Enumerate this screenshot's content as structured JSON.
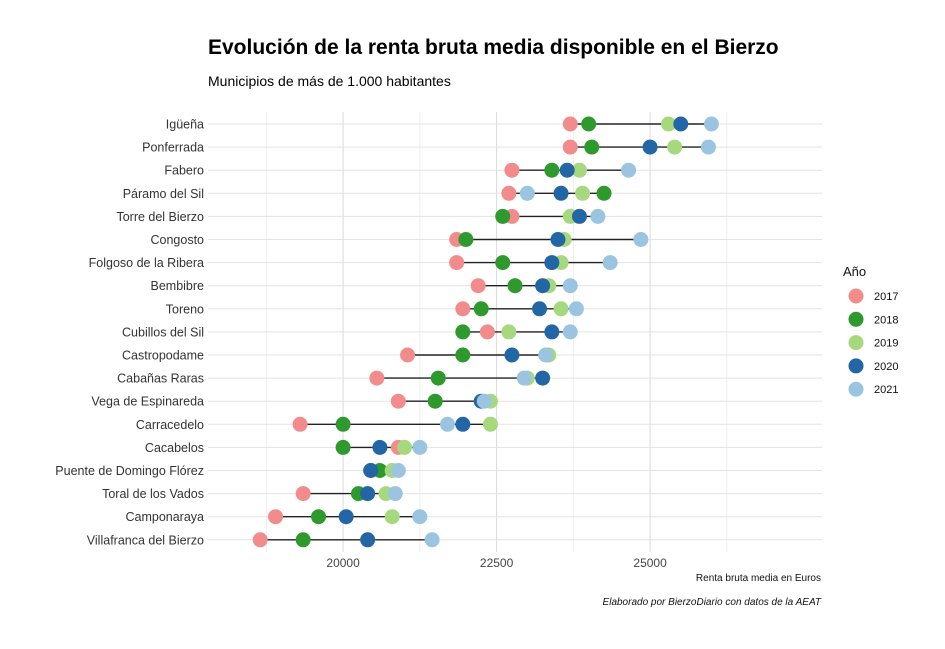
{
  "title": "Evolución de la renta bruta media disponible en el Bierzo",
  "subtitle": "Municipios de más de 1.000 habitantes",
  "caption": "Elaborado por BierzoDiario con datos de la AEAT",
  "chart_data": {
    "type": "scatter",
    "style": "dumbbell",
    "title": "Evolución de la renta bruta media disponible en el Bierzo",
    "subtitle": "Municipios de más de 1.000 habitantes",
    "xlabel": "Renta bruta media en Euros",
    "ylabel": "",
    "xlim": [
      17800,
      27800
    ],
    "xticks": [
      20000,
      22500,
      25000
    ],
    "grid": true,
    "legend": {
      "title": "Año",
      "position": "right"
    },
    "categories": [
      "Igüeña",
      "Ponferrada",
      "Fabero",
      "Páramo del Sil",
      "Torre del Bierzo",
      "Congosto",
      "Folgoso de la Ribera",
      "Bembibre",
      "Toreno",
      "Cubillos del Sil",
      "Castropodame",
      "Cabañas Raras",
      "Vega de Espinareda",
      "Carracedelo",
      "Cacabelos",
      "Puente de Domingo Flórez",
      "Toral de los Vados",
      "Camponaraya",
      "Villafranca del Bierzo"
    ],
    "series": [
      {
        "name": "2017",
        "color": "#f28b8b",
        "values": [
          23700,
          23700,
          22750,
          22700,
          22750,
          21850,
          21850,
          22200,
          21950,
          22350,
          21050,
          20550,
          20900,
          19300,
          20900,
          20450,
          19350,
          18900,
          18650
        ]
      },
      {
        "name": "2018",
        "color": "#2e9a2e",
        "values": [
          24000,
          24050,
          23400,
          24250,
          22600,
          22000,
          22600,
          22800,
          22250,
          21950,
          21950,
          21550,
          21500,
          20000,
          20000,
          20600,
          20250,
          19600,
          19350
        ]
      },
      {
        "name": "2019",
        "color": "#a6d97e",
        "values": [
          25300,
          25400,
          23850,
          23900,
          23700,
          23600,
          23550,
          23350,
          23550,
          22700,
          23350,
          23000,
          22400,
          22400,
          21000,
          20800,
          20700,
          20800,
          20400
        ]
      },
      {
        "name": "2020",
        "color": "#2366a6",
        "values": [
          25500,
          25000,
          23650,
          23550,
          23850,
          23500,
          23400,
          23250,
          23200,
          23400,
          22750,
          23250,
          22250,
          21950,
          20600,
          20450,
          20400,
          20050,
          20400
        ]
      },
      {
        "name": "2021",
        "color": "#9ac4e0",
        "values": [
          26000,
          25950,
          24650,
          23000,
          24150,
          24850,
          24350,
          23700,
          23800,
          23700,
          23300,
          22950,
          22300,
          21700,
          21250,
          20900,
          20850,
          21250,
          21450
        ]
      }
    ]
  }
}
